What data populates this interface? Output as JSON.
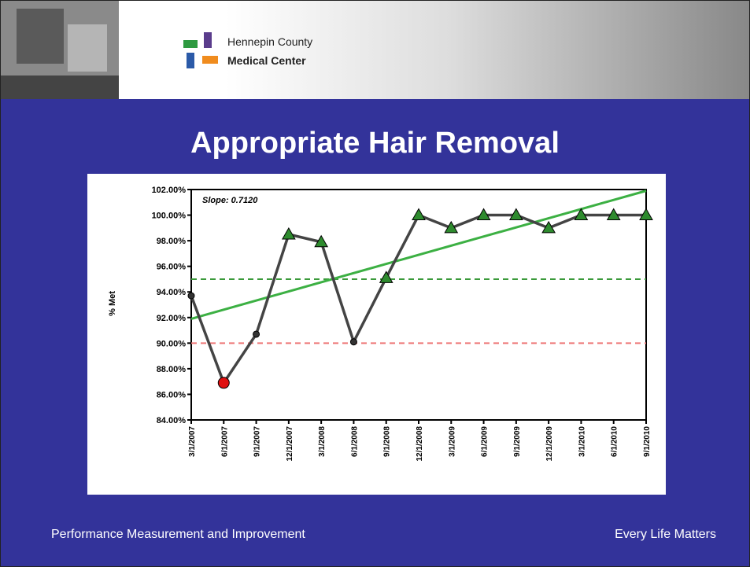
{
  "slide": {
    "header": {
      "line1": "Hennepin County",
      "line2": "Medical Center"
    },
    "title": "Appropriate Hair Removal",
    "footer": {
      "left": "Performance Measurement and Improvement",
      "right": "Every Life Matters"
    }
  },
  "chart_data": {
    "type": "line",
    "y_label": "% Met",
    "annotation": "Slope: 0.7120",
    "categories": [
      "3/1/2007",
      "6/1/2007",
      "9/1/2007",
      "12/1/2007",
      "3/1/2008",
      "6/1/2008",
      "9/1/2008",
      "12/1/2008",
      "3/1/2009",
      "6/1/2009",
      "9/1/2009",
      "12/1/2009",
      "3/1/2010",
      "6/1/2010",
      "9/1/2010"
    ],
    "series": [
      {
        "name": "% Met",
        "color": "#444444",
        "values": [
          93.7,
          86.9,
          90.7,
          98.5,
          97.9,
          90.1,
          95.1,
          100,
          99.0,
          100,
          100,
          99.0,
          100,
          100,
          100
        ],
        "marker_colors": [
          "#333333",
          "#e01010",
          "#333333",
          "#2e8b2e",
          "#2e8b2e",
          "#333333",
          "#2e8b2e",
          "#2e8b2e",
          "#2e8b2e",
          "#2e8b2e",
          "#2e8b2e",
          "#2e8b2e",
          "#2e8b2e",
          "#2e8b2e",
          "#2e8b2e"
        ]
      }
    ],
    "trendline": {
      "color": "#3cb043",
      "values": [
        91.9,
        101.9
      ]
    },
    "reference_lines": [
      {
        "value": 95,
        "color": "#3a9a3a"
      },
      {
        "value": 90,
        "color": "#ee7777"
      }
    ],
    "ylim": [
      84,
      102
    ],
    "yticks": [
      {
        "value": 84,
        "label": "84.00%"
      },
      {
        "value": 86,
        "label": "86.00%"
      },
      {
        "value": 88,
        "label": "88.00%"
      },
      {
        "value": 90,
        "label": "90.00%"
      },
      {
        "value": 92,
        "label": "92.00%"
      },
      {
        "value": 94,
        "label": "94.00%"
      },
      {
        "value": 96,
        "label": "96.00%"
      },
      {
        "value": 98,
        "label": "98.00%"
      },
      {
        "value": 100,
        "label": "100.00%"
      },
      {
        "value": 102,
        "label": "102.00%"
      }
    ]
  }
}
